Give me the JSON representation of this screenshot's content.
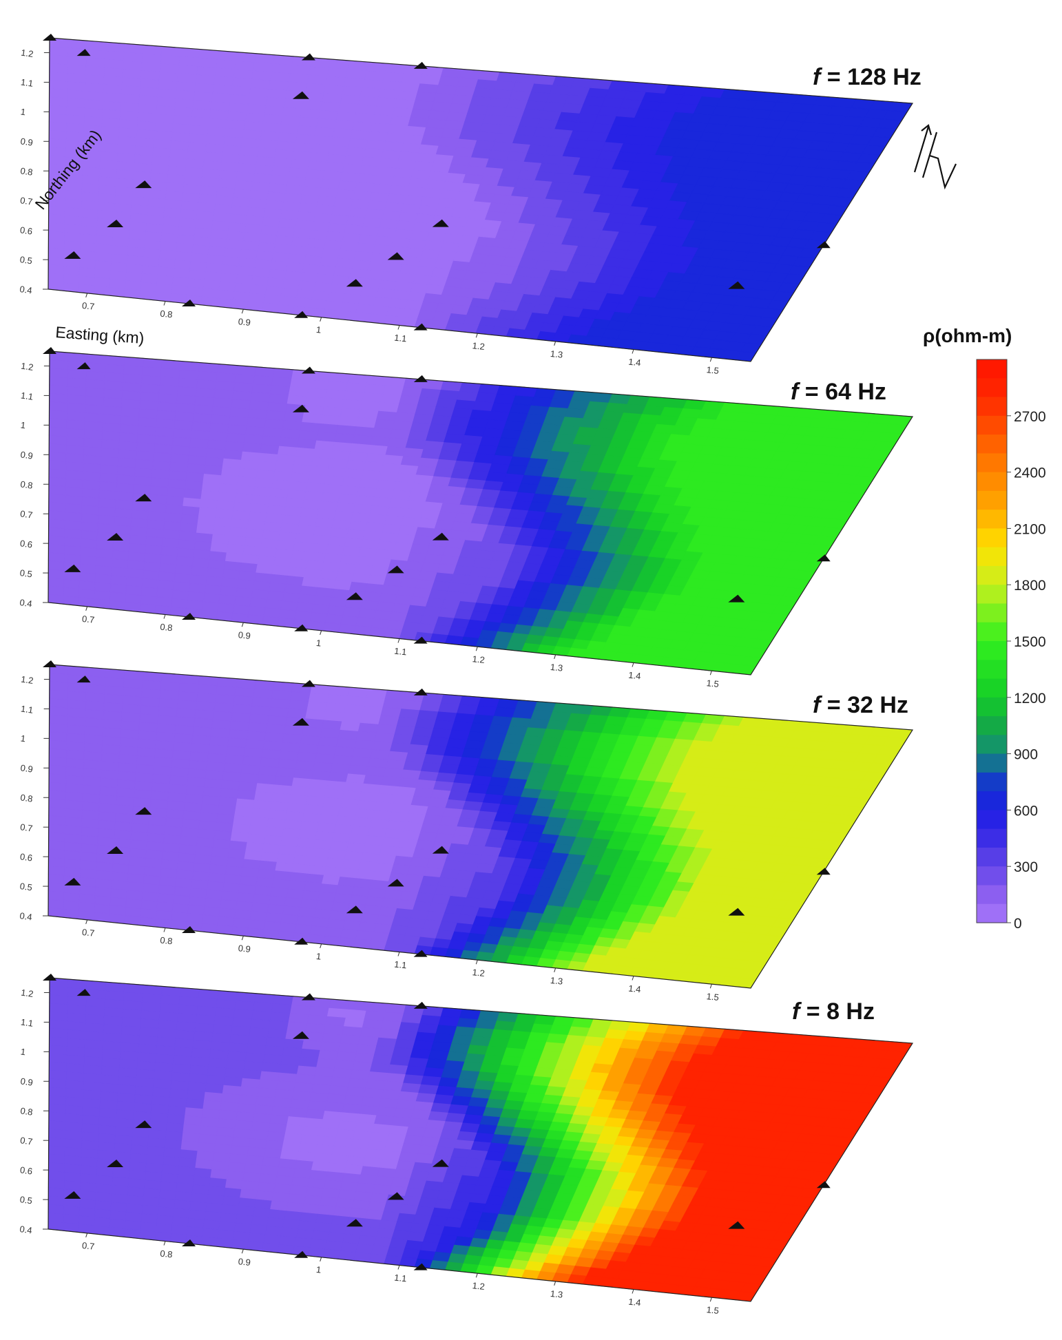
{
  "chart_data": {
    "type": "contour",
    "colorbar": {
      "title": "ρ(ohm-m)",
      "ticks": [
        "0",
        "300",
        "600",
        "900",
        "1200",
        "1500",
        "1800",
        "2100",
        "2400",
        "2700"
      ],
      "tick_values": [
        0,
        300,
        600,
        900,
        1200,
        1500,
        1800,
        2100,
        2400,
        2700
      ],
      "range": [
        0,
        3000
      ],
      "colors": [
        "#a070f5",
        "#6a4ae8",
        "#2222e6",
        "#148a80",
        "#22cc22",
        "#44ee22",
        "#ccee22",
        "#ffdd00",
        "#ff8800",
        "#ff2200"
      ]
    },
    "axes": {
      "xlabel": "Easting (km)",
      "ylabel": "Northing (km)",
      "easting_ticks": [
        "0.7",
        "0.8",
        "0.9",
        "1",
        "1.1",
        "1.2",
        "1.3",
        "1.4",
        "1.5"
      ],
      "northing_ticks": [
        "0.4",
        "0.5",
        "0.6",
        "0.7",
        "0.8",
        "0.9",
        "1",
        "1.1",
        "1.2"
      ],
      "xlim": [
        0.65,
        1.55
      ],
      "ylim": [
        0.4,
        1.25
      ]
    },
    "north_arrow": "N",
    "stations": [
      {
        "e": 0.68,
        "n": 0.52
      },
      {
        "e": 0.73,
        "n": 0.64
      },
      {
        "e": 0.76,
        "n": 0.78
      },
      {
        "e": 0.92,
        "n": 1.12
      },
      {
        "e": 1.03,
        "n": 0.52
      },
      {
        "e": 1.07,
        "n": 0.62
      },
      {
        "e": 1.11,
        "n": 0.74
      },
      {
        "e": 1.48,
        "n": 0.63
      }
    ],
    "panels": [
      {
        "label": "= 128 Hz",
        "frequency_hz": 128,
        "max_rho": 650
      },
      {
        "label": "= 64 Hz",
        "frequency_hz": 64,
        "max_rho": 1500
      },
      {
        "label": "= 32 Hz",
        "frequency_hz": 32,
        "max_rho": 1850
      },
      {
        "label": "= 8 Hz",
        "frequency_hz": 8,
        "max_rho": 2900
      }
    ]
  }
}
